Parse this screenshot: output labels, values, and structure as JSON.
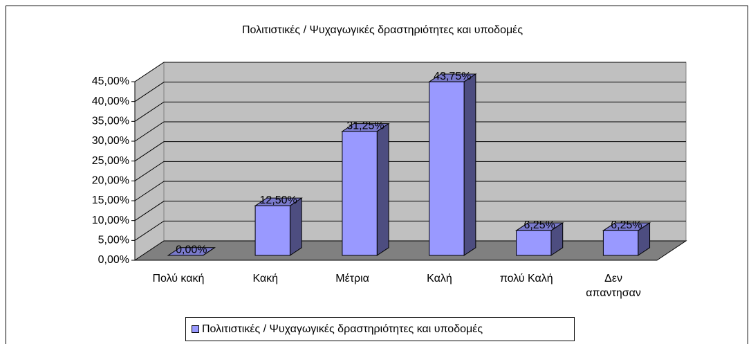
{
  "chart_data": {
    "type": "bar3d",
    "title": "Πολιτιστικές / Ψυχαγωγικές δραστηριότητες και υποδομές",
    "categories": [
      "Πολύ κακή",
      "Κακή",
      "Μέτρια",
      "Καλή",
      "πολύ Καλή",
      "Δεν απαντησαν"
    ],
    "series": [
      {
        "name": "Πολιτιστικές / Ψυχαγωγικές δραστηριότητες και υποδομές",
        "color": "#9999ff",
        "values": [
          0,
          12.5,
          31.25,
          43.75,
          6.25,
          6.25
        ],
        "value_labels": [
          "0,00%",
          "12,50%",
          "31,25%",
          "43,75%",
          "6,25%",
          "6,25%"
        ]
      }
    ],
    "ylim": [
      0,
      45
    ],
    "yticks": [
      {
        "value": 0,
        "label": "0,00%"
      },
      {
        "value": 5,
        "label": "5,00%"
      },
      {
        "value": 10,
        "label": "10,00%"
      },
      {
        "value": 15,
        "label": "15,00%"
      },
      {
        "value": 20,
        "label": "20,00%"
      },
      {
        "value": 25,
        "label": "25,00%"
      },
      {
        "value": 30,
        "label": "30,00%"
      },
      {
        "value": 35,
        "label": "35,00%"
      },
      {
        "value": 40,
        "label": "40,00%"
      },
      {
        "value": 45,
        "label": "45,00%"
      }
    ],
    "grid": true,
    "legend": "bottom"
  }
}
